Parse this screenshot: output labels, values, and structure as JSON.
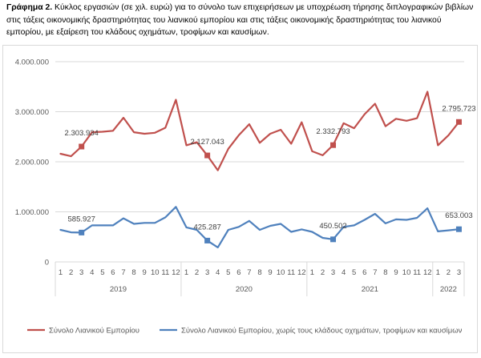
{
  "caption": {
    "label": "Γράφημα 2.",
    "text": " Κύκλος εργασιών (σε χιλ. ευρώ) για το σύνολο των επιχειρήσεων με υποχρέωση τήρησης διπλογραφικών βιβλίων στις τάξεις οικονομικής δραστηριότητας του λιανικού εμπορίου και στις τάξεις οικονομικής δραστηριότητας του λιανικού εμπορίου, με εξαίρεση του κλάδους οχημάτων, τροφίμων και καυσίμων."
  },
  "chart_data": {
    "type": "line",
    "x_months": [
      "1",
      "2",
      "3",
      "4",
      "5",
      "6",
      "7",
      "8",
      "9",
      "10",
      "11",
      "12",
      "1",
      "2",
      "3",
      "4",
      "5",
      "6",
      "7",
      "8",
      "9",
      "10",
      "11",
      "12",
      "1",
      "2",
      "3",
      "4",
      "5",
      "6",
      "7",
      "8",
      "9",
      "10",
      "11",
      "12",
      "1",
      "2",
      "3"
    ],
    "year_labels": [
      {
        "label": "2019",
        "start": 0,
        "end": 11
      },
      {
        "label": "2020",
        "start": 12,
        "end": 23
      },
      {
        "label": "2021",
        "start": 24,
        "end": 35
      },
      {
        "label": "2022",
        "start": 36,
        "end": 38
      }
    ],
    "ylim": [
      0,
      4000000
    ],
    "yticks": [
      {
        "value": 0,
        "label": "0"
      },
      {
        "value": 1000000,
        "label": "1.000.000"
      },
      {
        "value": 2000000,
        "label": "2.000.000"
      },
      {
        "value": 3000000,
        "label": "3.000.000"
      },
      {
        "value": 4000000,
        "label": "4.000.000"
      }
    ],
    "grid": true,
    "legend_position": "bottom",
    "series": [
      {
        "name": "Σύνολο Λιανικού Εμπορίου",
        "color": "#c0504d",
        "values": [
          2160000,
          2110000,
          2303934,
          2590000,
          2600000,
          2620000,
          2880000,
          2590000,
          2560000,
          2580000,
          2680000,
          3240000,
          2330000,
          2390000,
          2127043,
          1830000,
          2260000,
          2530000,
          2750000,
          2380000,
          2560000,
          2640000,
          2360000,
          2790000,
          2210000,
          2130000,
          2332793,
          2770000,
          2670000,
          2950000,
          3160000,
          2710000,
          2860000,
          2820000,
          2870000,
          3400000,
          2330000,
          2530000,
          2795723
        ],
        "markers": [
          {
            "index": 2,
            "label": "2.303.934"
          },
          {
            "index": 14,
            "label": "2.127.043"
          },
          {
            "index": 26,
            "label": "2.332.793"
          },
          {
            "index": 38,
            "label": "2.795.723"
          }
        ]
      },
      {
        "name": "Σύνολο Λιανικού Εμπορίου, χωρίς τους κλάδους οχημάτων, τροφίμων και καυσίμων",
        "color": "#4f81bd",
        "values": [
          640000,
          590000,
          585927,
          730000,
          730000,
          730000,
          870000,
          760000,
          780000,
          780000,
          890000,
          1100000,
          690000,
          640000,
          425287,
          290000,
          640000,
          700000,
          820000,
          640000,
          720000,
          760000,
          600000,
          650000,
          600000,
          480000,
          450502,
          700000,
          730000,
          840000,
          960000,
          770000,
          850000,
          840000,
          880000,
          1070000,
          610000,
          630000,
          653003
        ],
        "markers": [
          {
            "index": 2,
            "label": "585.927"
          },
          {
            "index": 14,
            "label": "425.287"
          },
          {
            "index": 26,
            "label": "450.502"
          },
          {
            "index": 38,
            "label": "653.003"
          }
        ]
      }
    ]
  }
}
